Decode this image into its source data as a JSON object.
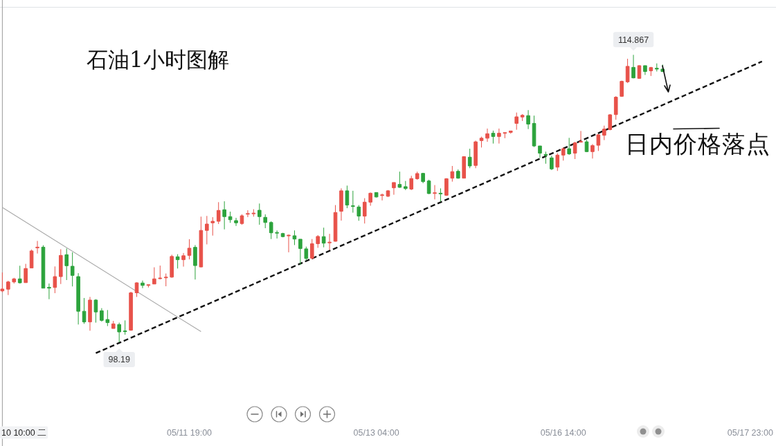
{
  "chart_data": {
    "type": "candlestick",
    "title": "石油1小时图解",
    "categories": [
      null,
      null,
      null,
      null,
      null,
      null,
      null,
      null,
      null,
      null,
      null,
      null,
      null,
      null,
      null,
      null,
      null,
      null,
      null,
      null,
      null,
      null,
      null,
      null,
      null,
      null,
      null,
      null,
      null,
      null,
      null,
      null,
      "05/11 19:00",
      null,
      null,
      null,
      null,
      null,
      null,
      null,
      null,
      null,
      null,
      null,
      null,
      null,
      null,
      null,
      null,
      null,
      null,
      null,
      null,
      null,
      null,
      null,
      null,
      null,
      null,
      null,
      null,
      null,
      null,
      null,
      "05/13 04:00",
      null,
      null,
      null,
      null,
      null,
      null,
      null,
      null,
      null,
      null,
      null,
      null,
      null,
      null,
      null,
      null,
      null,
      null,
      null,
      null,
      null,
      null,
      null,
      null,
      null,
      null,
      null,
      null,
      null,
      null,
      null,
      "05/16 14:00",
      null,
      null,
      null,
      null,
      null,
      null,
      null,
      null,
      null,
      null,
      null,
      null,
      null,
      null,
      null,
      null,
      null,
      null,
      null,
      null,
      null,
      null,
      null,
      null,
      null,
      null,
      null,
      null,
      null,
      null,
      null,
      "05/17 23:00",
      null,
      null,
      null,
      null
    ],
    "ohlc": [
      [
        101.17,
        102.24,
        101.09,
        101.28
      ],
      [
        101.27,
        101.76,
        100.93,
        101.69
      ],
      [
        101.69,
        101.93,
        101.6,
        101.87
      ],
      [
        101.87,
        102.63,
        101.6,
        101.64
      ],
      [
        101.65,
        102.74,
        101.65,
        102.47
      ],
      [
        102.5,
        103.57,
        102.5,
        103.49
      ],
      [
        103.67,
        104.07,
        103.34,
        103.71
      ],
      [
        103.71,
        103.82,
        101.33,
        101.33
      ],
      [
        101.38,
        101.6,
        100.69,
        101.33
      ],
      [
        101.37,
        102.59,
        101.04,
        102.0
      ],
      [
        102.0,
        103.59,
        101.57,
        103.23
      ],
      [
        103.27,
        103.63,
        101.8,
        102.63
      ],
      [
        102.6,
        103.41,
        101.43,
        102.07
      ],
      [
        102.0,
        102.2,
        99.22,
        99.99
      ],
      [
        99.99,
        100.76,
        99.26,
        99.37
      ],
      [
        99.37,
        100.82,
        98.86,
        100.64
      ],
      [
        100.64,
        100.69,
        99.33,
        99.95
      ],
      [
        100.02,
        100.17,
        99.39,
        99.46
      ],
      [
        99.51,
        100.06,
        99.13,
        99.33
      ],
      [
        98.99,
        99.43,
        98.99,
        99.26
      ],
      [
        99.22,
        99.33,
        98.19,
        98.79
      ],
      [
        98.84,
        99.46,
        98.63,
        98.82
      ],
      [
        98.89,
        101.12,
        98.86,
        101.06
      ],
      [
        101.06,
        101.67,
        100.82,
        101.64
      ],
      [
        101.63,
        101.77,
        101.33,
        101.49
      ],
      [
        101.49,
        101.55,
        101.37,
        101.53
      ],
      [
        101.57,
        102.54,
        101.57,
        101.87
      ],
      [
        101.88,
        102.64,
        101.84,
        101.92
      ],
      [
        101.93,
        102.18,
        101.44,
        101.97
      ],
      [
        101.97,
        103.27,
        101.93,
        103.17
      ],
      [
        103.15,
        103.3,
        102.47,
        102.98
      ],
      [
        102.98,
        103.37,
        102.58,
        103.21
      ],
      [
        103.23,
        104.17,
        103.0,
        103.65
      ],
      [
        103.7,
        103.83,
        101.83,
        102.64
      ],
      [
        102.56,
        105.48,
        102.54,
        104.68
      ],
      [
        104.68,
        105.52,
        103.87,
        105.05
      ],
      [
        105.12,
        105.45,
        104.38,
        105.21
      ],
      [
        105.21,
        106.32,
        105.05,
        105.84
      ],
      [
        105.88,
        106.37,
        104.74,
        105.48
      ],
      [
        105.48,
        105.77,
        105.12,
        105.3
      ],
      [
        105.25,
        105.41,
        104.94,
        105.12
      ],
      [
        105.08,
        105.61,
        105.01,
        105.53
      ],
      [
        105.63,
        105.85,
        105.45,
        105.65
      ],
      [
        105.65,
        105.91,
        105.48,
        105.68
      ],
      [
        105.85,
        106.24,
        105.01,
        105.48
      ],
      [
        105.44,
        105.61,
        104.81,
        105.14
      ],
      [
        105.14,
        105.21,
        104.18,
        104.54
      ],
      [
        104.56,
        104.68,
        104.21,
        104.52
      ],
      [
        104.5,
        104.54,
        104.28,
        104.32
      ],
      [
        104.37,
        104.44,
        103.41,
        104.4
      ],
      [
        104.37,
        104.68,
        103.83,
        104.18
      ],
      [
        104.17,
        104.17,
        102.67,
        103.63
      ],
      [
        103.61,
        103.74,
        102.94,
        103.05
      ],
      [
        103.07,
        104.18,
        103.0,
        103.91
      ],
      [
        103.91,
        104.41,
        103.67,
        104.33
      ],
      [
        104.32,
        104.84,
        103.7,
        103.94
      ],
      [
        103.97,
        104.48,
        103.54,
        103.99
      ],
      [
        104.05,
        106.15,
        104.03,
        105.72
      ],
      [
        105.79,
        107.12,
        105.25,
        106.98
      ],
      [
        106.98,
        107.28,
        105.97,
        106.15
      ],
      [
        106.11,
        106.98,
        105.71,
        106.07
      ],
      [
        106.04,
        106.15,
        105.24,
        105.51
      ],
      [
        105.51,
        106.55,
        105.08,
        106.32
      ],
      [
        106.32,
        106.88,
        106.11,
        106.84
      ],
      [
        106.88,
        106.88,
        106.59,
        106.62
      ],
      [
        106.71,
        106.82,
        106.42,
        106.74
      ],
      [
        106.66,
        107.02,
        106.62,
        106.98
      ],
      [
        107.15,
        107.46,
        106.75,
        107.46
      ],
      [
        107.35,
        108.09,
        107.15,
        107.18
      ],
      [
        107.22,
        107.55,
        107.02,
        107.11
      ],
      [
        107.08,
        107.85,
        107.02,
        107.69
      ],
      [
        107.68,
        108.09,
        107.62,
        107.98
      ],
      [
        107.99,
        108.02,
        107.42,
        107.51
      ],
      [
        107.55,
        107.62,
        106.79,
        106.82
      ],
      [
        106.83,
        107.31,
        106.48,
        106.86
      ],
      [
        106.84,
        107.12,
        106.35,
        106.8
      ],
      [
        106.72,
        107.71,
        106.68,
        107.68
      ],
      [
        107.71,
        108.42,
        107.51,
        108.09
      ],
      [
        108.11,
        108.22,
        107.68,
        107.71
      ],
      [
        107.71,
        108.98,
        107.71,
        108.96
      ],
      [
        108.93,
        109.42,
        108.29,
        108.42
      ],
      [
        108.45,
        109.89,
        108.29,
        109.82
      ],
      [
        109.89,
        110.12,
        109.49,
        110.03
      ],
      [
        110.03,
        110.59,
        109.82,
        110.29
      ],
      [
        110.32,
        110.47,
        109.72,
        110.13
      ],
      [
        110.13,
        110.59,
        109.72,
        110.32
      ],
      [
        110.32,
        110.36,
        110.03,
        110.35
      ],
      [
        110.37,
        110.45,
        110.29,
        110.45
      ],
      [
        110.89,
        111.52,
        110.52,
        111.27
      ],
      [
        111.26,
        111.43,
        111.03,
        111.36
      ],
      [
        111.34,
        111.66,
        110.56,
        110.85
      ],
      [
        110.89,
        111.34,
        109.52,
        109.58
      ],
      [
        109.58,
        109.58,
        108.89,
        109.16
      ],
      [
        109.09,
        109.25,
        108.55,
        109.04
      ],
      [
        108.89,
        109.02,
        108.18,
        108.25
      ],
      [
        108.35,
        109.16,
        108.13,
        109.05
      ],
      [
        109.05,
        109.49,
        108.73,
        109.42
      ],
      [
        109.42,
        110.05,
        109.06,
        109.12
      ],
      [
        109.16,
        109.82,
        108.82,
        109.76
      ],
      [
        109.8,
        110.45,
        109.78,
        109.84
      ],
      [
        109.82,
        109.93,
        109.22,
        109.25
      ],
      [
        109.25,
        109.69,
        108.85,
        109.6
      ],
      [
        109.62,
        110.27,
        109.29,
        110.23
      ],
      [
        110.2,
        110.76,
        109.92,
        110.56
      ],
      [
        110.53,
        111.43,
        110.49,
        111.39
      ],
      [
        111.4,
        112.47,
        111.1,
        112.41
      ],
      [
        112.46,
        113.37,
        112.43,
        113.33
      ],
      [
        113.3,
        114.64,
        113.23,
        114.2
      ],
      [
        114.14,
        114.867,
        113.5,
        113.53
      ],
      [
        113.5,
        114.26,
        113.48,
        114.24
      ],
      [
        114.24,
        114.24,
        113.7,
        113.9
      ],
      [
        113.94,
        114.17,
        113.64,
        114.13
      ],
      [
        114.09,
        114.37,
        113.9,
        114.04
      ],
      [
        114.04,
        114.3,
        113.88,
        113.9
      ],
      null,
      null,
      null,
      null,
      null,
      null,
      null,
      null,
      null,
      null,
      null,
      null,
      null,
      null,
      null,
      null,
      null,
      null,
      null
    ],
    "colors": [
      "#e8524a",
      "#e8524a",
      "#e8524a",
      "#2ca33c",
      "#e8524a",
      "#e8524a",
      "#e8524a",
      "#2ca33c",
      "#2ca33c",
      "#e8524a",
      "#e8524a",
      "#2ca33c",
      "#2ca33c",
      "#2ca33c",
      "#2ca33c",
      "#e8524a",
      "#2ca33c",
      "#2ca33c",
      "#2ca33c",
      "#e8524a",
      "#2ca33c",
      "#2ca33c",
      "#e8524a",
      "#e8524a",
      "#2ca33c",
      "#e8524a",
      "#e8524a",
      "#e8524a",
      "#e8524a",
      "#e8524a",
      "#2ca33c",
      "#e8524a",
      "#e8524a",
      "#2ca33c",
      "#e8524a",
      "#e8524a",
      "#e8524a",
      "#e8524a",
      "#2ca33c",
      "#2ca33c",
      "#2ca33c",
      "#e8524a",
      "#e8524a",
      "#e8524a",
      "#2ca33c",
      "#2ca33c",
      "#2ca33c",
      "#2ca33c",
      "#2ca33c",
      "#e8524a",
      "#2ca33c",
      "#2ca33c",
      "#2ca33c",
      "#e8524a",
      "#e8524a",
      "#2ca33c",
      "#e8524a",
      "#e8524a",
      "#e8524a",
      "#2ca33c",
      "#2ca33c",
      "#2ca33c",
      "#e8524a",
      "#e8524a",
      "#2ca33c",
      "#e8524a",
      "#e8524a",
      "#e8524a",
      "#2ca33c",
      "#2ca33c",
      "#e8524a",
      "#e8524a",
      "#2ca33c",
      "#2ca33c",
      "#e8524a",
      "#2ca33c",
      "#e8524a",
      "#e8524a",
      "#2ca33c",
      "#e8524a",
      "#2ca33c",
      "#e8524a",
      "#e8524a",
      "#e8524a",
      "#2ca33c",
      "#e8524a",
      "#e8524a",
      "#e8524a",
      "#e8524a",
      "#e8524a",
      "#2ca33c",
      "#2ca33c",
      "#2ca33c",
      "#2ca33c",
      "#2ca33c",
      "#e8524a",
      "#e8524a",
      "#2ca33c",
      "#e8524a",
      "#e8524a",
      "#2ca33c",
      "#e8524a",
      "#e8524a",
      "#e8524a",
      "#e8524a",
      "#e8524a",
      "#e8524a",
      "#e8524a",
      "#2ca33c",
      "#e8524a",
      "#2ca33c",
      "#e8524a",
      "#2ca33c",
      "#2ca33c",
      null,
      null,
      null,
      null,
      null,
      null,
      null,
      null,
      null,
      null,
      null,
      null,
      null,
      null,
      null,
      null,
      null,
      null,
      null
    ],
    "series": [
      {
        "type": "line",
        "color": "#111111",
        "line_style": "dashed",
        "values": [
          null,
          null,
          null,
          null,
          null,
          null,
          null,
          null,
          null,
          null,
          null,
          null,
          null,
          null,
          null,
          null,
          97.56,
          null,
          null,
          null,
          null,
          null,
          null,
          null,
          null,
          null,
          null,
          null,
          null,
          null,
          null,
          null,
          null,
          null,
          null,
          null,
          null,
          null,
          null,
          null,
          null,
          null,
          null,
          null,
          null,
          null,
          null,
          null,
          null,
          null,
          null,
          null,
          null,
          null,
          null,
          null,
          null,
          null,
          null,
          null,
          null,
          null,
          null,
          null,
          null,
          null,
          null,
          null,
          null,
          null,
          null,
          null,
          null,
          null,
          null,
          null,
          null,
          null,
          null,
          null,
          null,
          null,
          null,
          null,
          null,
          null,
          null,
          null,
          null,
          null,
          null,
          null,
          null,
          null,
          null,
          null,
          null,
          null,
          null,
          null,
          null,
          null,
          null,
          null,
          null,
          null,
          null,
          null,
          null,
          null,
          null,
          null,
          null,
          null,
          null,
          null,
          null,
          null,
          null,
          null,
          null,
          null,
          null,
          null,
          null,
          null,
          null,
          null,
          null,
          null,
          114.48,
          null,
          null
        ]
      },
      {
        "type": "line",
        "color": "#a8a8a8",
        "line_style": "solid",
        "values": [
          106.01,
          null,
          null,
          null,
          null,
          null,
          null,
          null,
          null,
          null,
          null,
          null,
          null,
          null,
          null,
          null,
          null,
          null,
          null,
          null,
          null,
          null,
          null,
          null,
          null,
          null,
          null,
          null,
          null,
          null,
          null,
          null,
          null,
          null,
          98.81,
          null,
          null,
          null,
          null,
          null,
          null,
          null,
          null,
          null,
          null,
          null,
          null,
          null,
          null,
          null,
          null,
          null,
          null,
          null,
          null,
          null,
          null,
          null,
          null,
          null,
          null,
          null,
          null,
          null,
          null,
          null,
          null,
          null,
          null,
          null,
          null,
          null,
          null,
          null,
          null,
          null,
          null,
          null,
          null,
          null,
          null,
          null,
          null,
          null,
          null,
          null,
          null,
          null,
          null,
          null,
          null,
          null,
          null,
          null,
          null,
          null,
          null,
          null,
          null,
          null,
          null,
          null,
          null,
          null,
          null,
          null,
          null,
          null,
          null,
          null,
          null,
          null,
          null,
          null,
          null,
          null,
          null,
          null,
          null,
          null,
          null,
          null,
          null,
          null,
          null,
          null,
          null,
          null,
          null,
          null,
          null,
          null,
          null
        ]
      }
    ],
    "annotations": [
      {
        "text": "114.867",
        "y": 114.867
      },
      {
        "text": "98.19",
        "y": 98.19
      },
      "日内价格落点",
      "10 10:00 二"
    ]
  }
}
